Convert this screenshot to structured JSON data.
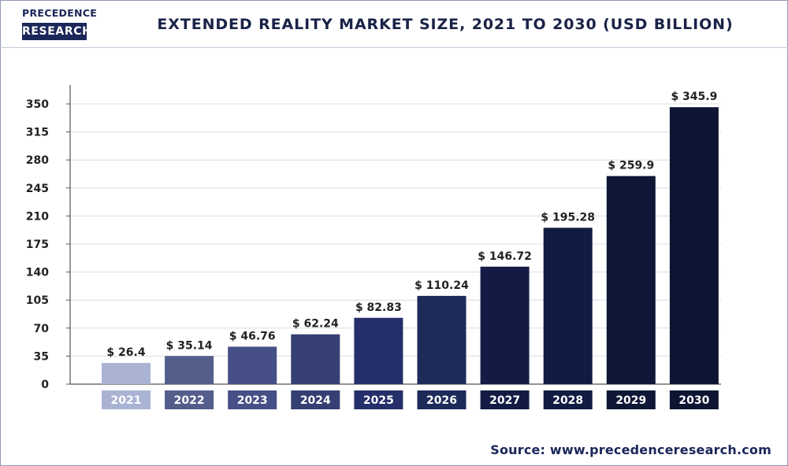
{
  "header": {
    "logo_top": "PRECEDENCE",
    "logo_bottom": "RESEARCH",
    "title": "EXTENDED REALITY MARKET SIZE, 2021 TO 2030 (USD BILLION)"
  },
  "footer": {
    "source": "Source: www.precedenceresearch.com"
  },
  "colors": {
    "bars": [
      "#aab3d4",
      "#555e8b",
      "#464f86",
      "#363f74",
      "#252f69",
      "#1c2b5a",
      "#131b45",
      "#121b42",
      "#0f1737",
      "#0e1533"
    ]
  },
  "chart_data": {
    "type": "bar",
    "title": "EXTENDED REALITY MARKET SIZE, 2021 TO 2030 (USD BILLION)",
    "categories": [
      "2021",
      "2022",
      "2023",
      "2024",
      "2025",
      "2026",
      "2027",
      "2028",
      "2029",
      "2030"
    ],
    "values": [
      26.4,
      35.14,
      46.76,
      62.24,
      82.83,
      110.24,
      146.72,
      195.28,
      259.9,
      345.9
    ],
    "data_labels": [
      "$ 26.4",
      "$ 35.14",
      "$ 46.76",
      "$ 62.24",
      "$ 82.83",
      "$ 110.24",
      "$ 146.72",
      "$ 195.28",
      "$ 259.9",
      "$ 345.9"
    ],
    "ylim": [
      0,
      350
    ],
    "yticks": [
      "0",
      "35",
      "70",
      "105",
      "140",
      "175",
      "210",
      "245",
      "280",
      "315",
      "350"
    ],
    "xlabel": "",
    "ylabel": "",
    "grid": true,
    "legend": "none"
  }
}
